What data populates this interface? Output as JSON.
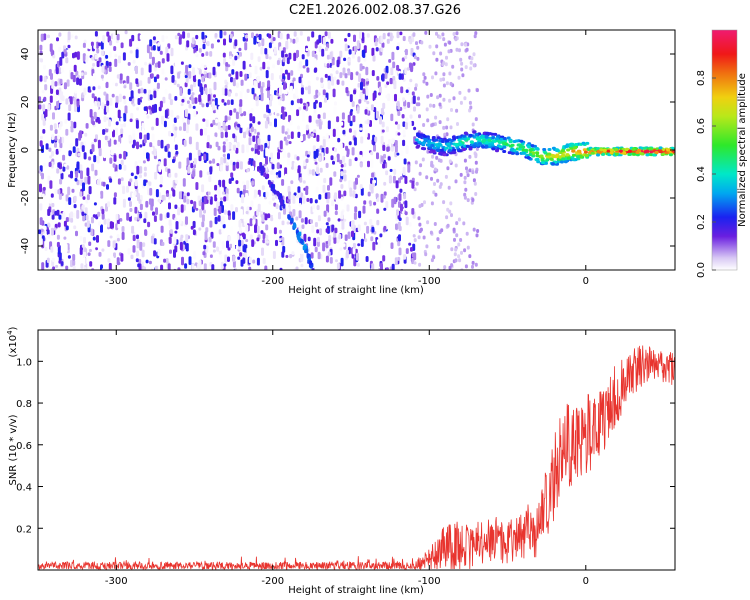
{
  "title": "C2E1.2026.002.08.37.G26",
  "chart_data": [
    {
      "type": "heatmap",
      "title": "C2E1.2026.002.08.37.G26",
      "xlabel": "Height of straight line (km)",
      "ylabel": "Frequency (Hz)",
      "xlim": [
        -350,
        57
      ],
      "ylim": [
        -50,
        50
      ],
      "xticks": [
        -300,
        -200,
        -100,
        0
      ],
      "xtick_labels": [
        "-300",
        "-200",
        "-100",
        "0"
      ],
      "yticks": [
        -40,
        -20,
        0,
        20,
        40
      ],
      "ytick_labels": [
        "-40",
        "-20",
        "0",
        "20",
        "40"
      ],
      "colorbar": {
        "label": "Normalized spectral amplitude",
        "range": [
          0,
          1
        ],
        "ticks": [
          0.0,
          0.2,
          0.4,
          0.6,
          0.8
        ],
        "tick_labels": [
          "0.0",
          "0.2",
          "0.4",
          "0.6",
          "0.8"
        ]
      },
      "signal_trace": {
        "x": [
          -110,
          -100,
          -90,
          -80,
          -70,
          -60,
          -50,
          -40,
          -30,
          -20,
          -10,
          0,
          10,
          20,
          30,
          40,
          57
        ],
        "y": [
          5,
          3,
          2,
          4,
          5,
          4,
          3,
          1,
          -2,
          -2,
          0,
          0,
          0,
          0,
          0,
          0,
          0
        ],
        "amplitude": [
          0.3,
          0.35,
          0.4,
          0.45,
          0.45,
          0.45,
          0.5,
          0.55,
          0.65,
          0.7,
          0.8,
          0.85,
          0.9,
          0.95,
          1.0,
          1.0,
          1.0
        ]
      },
      "secondary_trace": {
        "x": [
          -210,
          -195,
          -180,
          -175
        ],
        "y": [
          -5,
          -20,
          -40,
          -50
        ],
        "amplitude": [
          0.15,
          0.2,
          0.3,
          0.2
        ]
      },
      "noise_region_xlim": [
        -350,
        -110
      ]
    },
    {
      "type": "line",
      "xlabel": "Height of straight line (km)",
      "ylabel": "SNR (10 * v/v)",
      "y_scale_label": "(x10",
      "y_scale_exponent": "4",
      "xlim": [
        -350,
        57
      ],
      "ylim": [
        0,
        1.15
      ],
      "xticks": [
        -300,
        -200,
        -100,
        0
      ],
      "xtick_labels": [
        "-300",
        "-200",
        "-100",
        "0"
      ],
      "yticks": [
        0.2,
        0.4,
        0.6,
        0.8,
        1.0
      ],
      "ytick_labels": [
        "0.2",
        "0.4",
        "0.6",
        "0.8",
        "1.0"
      ],
      "series": [
        {
          "name": "SNR",
          "color": "#e8342e",
          "envelope_x": [
            -350,
            -300,
            -200,
            -110,
            -100,
            -90,
            -80,
            -70,
            -60,
            -50,
            -40,
            -30,
            -25,
            -20,
            -15,
            -10,
            0,
            10,
            20,
            30,
            40,
            50,
            57
          ],
          "envelope_mean": [
            0.02,
            0.02,
            0.02,
            0.02,
            0.05,
            0.1,
            0.12,
            0.12,
            0.15,
            0.15,
            0.17,
            0.2,
            0.3,
            0.45,
            0.6,
            0.6,
            0.65,
            0.7,
            0.85,
            0.95,
            1.0,
            0.98,
            0.96
          ],
          "envelope_amp": [
            0.02,
            0.02,
            0.02,
            0.02,
            0.05,
            0.12,
            0.12,
            0.12,
            0.12,
            0.12,
            0.13,
            0.15,
            0.2,
            0.22,
            0.2,
            0.2,
            0.2,
            0.17,
            0.15,
            0.12,
            0.1,
            0.08,
            0.08
          ]
        }
      ]
    }
  ]
}
